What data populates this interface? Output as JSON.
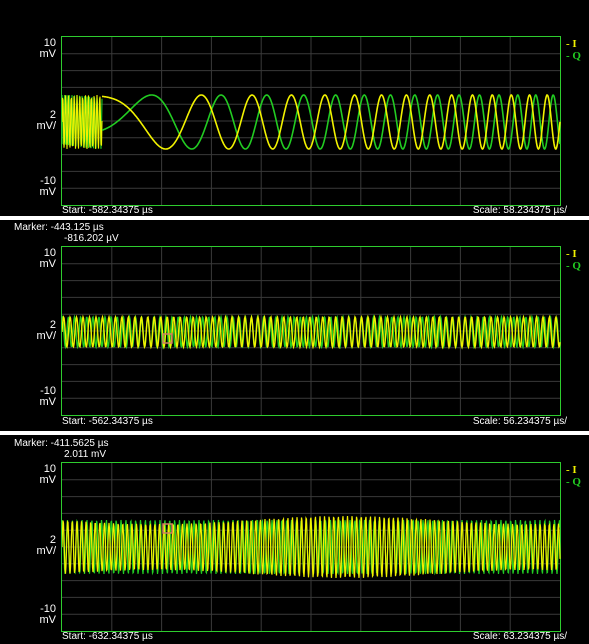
{
  "panels": [
    {
      "ylabels": {
        "top_val": "10",
        "top_unit": "mV",
        "mid_val": "2",
        "mid_unit": "mV/",
        "bot_val": "-10",
        "bot_unit": "mV"
      },
      "legend": {
        "i": "I",
        "q": "Q"
      },
      "start": "Start: -582.34375 µs",
      "scale": "Scale: 58.234375 µs/",
      "marker": null
    },
    {
      "ylabels": {
        "top_val": "10",
        "top_unit": "mV",
        "mid_val": "2",
        "mid_unit": "mV/",
        "bot_val": "-10",
        "bot_unit": "mV"
      },
      "legend": {
        "i": "I",
        "q": "Q"
      },
      "start": "Start: -562.34375 µs",
      "scale": "Scale: 56.234375 µs/",
      "marker": {
        "line1": "Marker: -443.125 µs",
        "line2": "-816.202 µV"
      }
    },
    {
      "ylabels": {
        "top_val": "10",
        "top_unit": "mV",
        "mid_val": "2",
        "mid_unit": "mV/",
        "bot_val": "-10",
        "bot_unit": "mV"
      },
      "legend": {
        "i": "I",
        "q": "Q"
      },
      "start": "Start: -632.34375 µs",
      "scale": "Scale: 63.234375 µs/",
      "marker": {
        "line1": "Marker: -411.5625 µs",
        "line2": "2.011 mV"
      }
    }
  ],
  "colors": {
    "I": "#f2f200",
    "Q": "#22cc22",
    "grid": "#3a3a3a",
    "frame": "#2ecc2e",
    "marker": "#d08060"
  },
  "chart_data": [
    {
      "type": "line",
      "xlabel": "",
      "ylabel": "",
      "series": [
        {
          "name": "I"
        },
        {
          "name": "Q"
        }
      ],
      "grid": true,
      "legend": "right"
    },
    {
      "type": "line",
      "xlabel": "",
      "ylabel": "",
      "series": [
        {
          "name": "I"
        },
        {
          "name": "Q"
        }
      ],
      "grid": true,
      "legend": "right"
    },
    {
      "type": "line",
      "xlabel": "",
      "ylabel": "",
      "series": [
        {
          "name": "I"
        },
        {
          "name": "Q"
        }
      ],
      "grid": true,
      "legend": "right"
    }
  ]
}
